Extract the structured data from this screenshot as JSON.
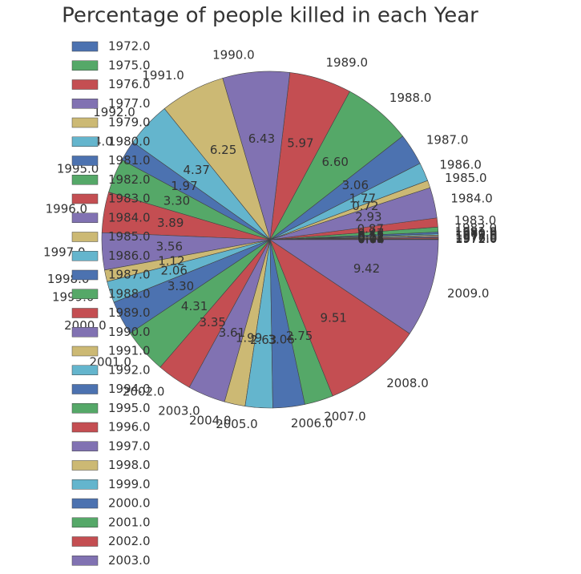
{
  "chart_data": {
    "type": "pie",
    "title": "Percentage of people killed in each Year",
    "categories": [
      "1972.0",
      "1975.0",
      "1976.0",
      "1977.0",
      "1979.0",
      "1980.0",
      "1981.0",
      "1982.0",
      "1983.0",
      "1984.0",
      "1985.0",
      "1986.0",
      "1987.0",
      "1988.0",
      "1989.0",
      "1990.0",
      "1991.0",
      "1992.0",
      "1994.0",
      "1995.0",
      "1996.0",
      "1997.0",
      "1998.0",
      "1999.0",
      "2000.0",
      "2001.0",
      "2002.0",
      "2003.0",
      "2004.0",
      "2005.0",
      "2006.0",
      "2007.0",
      "2008.0",
      "2009.0"
    ],
    "values": [
      0.04,
      0.05,
      0.11,
      0.12,
      0.12,
      0.12,
      0.17,
      0.47,
      0.87,
      2.93,
      0.72,
      1.77,
      3.06,
      6.6,
      5.97,
      6.43,
      6.25,
      4.37,
      1.97,
      3.3,
      3.89,
      3.56,
      1.12,
      2.06,
      3.3,
      4.31,
      3.35,
      3.61,
      1.99,
      2.63,
      3.06,
      2.75,
      9.51,
      9.42
    ],
    "value_labels": [
      "0.04",
      "0.05",
      "0.11",
      "0.12",
      "0.12",
      "0.12",
      "0.17",
      "0.47",
      "0.87",
      "2.93",
      "0.72",
      "1.77",
      "3.06",
      "6.60",
      "5.97",
      "6.43",
      "6.25",
      "4.37",
      "1.97",
      "3.30",
      "3.89",
      "3.56",
      "1.12",
      "2.06",
      "3.30",
      "4.31",
      "3.35",
      "3.61",
      "1.99",
      "2.63",
      "3.06",
      "2.75",
      "9.51",
      "9.42"
    ],
    "colors": [
      "#4C72B0",
      "#55A868",
      "#C44E52",
      "#8172B2",
      "#CCB974",
      "#64B5CD"
    ],
    "legend": "upper left"
  }
}
